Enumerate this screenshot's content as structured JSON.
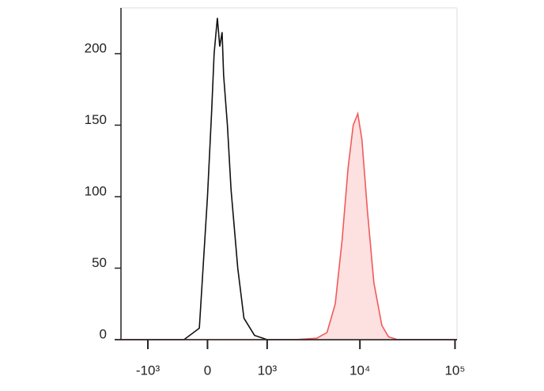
{
  "chart_data": {
    "type": "histogram",
    "xscale": "biexponential",
    "xlim": [
      -2000,
      105000
    ],
    "ylim": [
      0,
      232
    ],
    "xticks": [
      {
        "value": -1000,
        "label": "-10³"
      },
      0,
      {
        "value": 1000,
        "label": "10³"
      },
      {
        "value": 10000,
        "label": "10⁴"
      },
      {
        "value": 100000,
        "label": "10⁵"
      }
    ],
    "yticks": [
      0,
      50,
      100,
      150,
      200
    ],
    "series": [
      {
        "color": "#111111",
        "fill": "none",
        "x": [
          -2000,
          -300,
          -100,
          0,
          50,
          80,
          120,
          150,
          180,
          200,
          250,
          300,
          400,
          500,
          700,
          1000,
          105000
        ],
        "values": [
          0,
          0,
          8,
          100,
          160,
          200,
          225,
          205,
          215,
          185,
          150,
          105,
          50,
          15,
          3,
          0,
          0
        ]
      },
      {
        "color": "#f05a5a",
        "fill": "#fde0e0",
        "x": [
          -2000,
          2000,
          3500,
          4500,
          5500,
          6500,
          7500,
          8500,
          9500,
          10500,
          12000,
          14000,
          17000,
          20000,
          25000,
          105000
        ],
        "values": [
          0,
          0,
          1,
          5,
          25,
          70,
          120,
          150,
          158,
          140,
          90,
          40,
          10,
          2,
          0,
          0
        ]
      }
    ]
  }
}
